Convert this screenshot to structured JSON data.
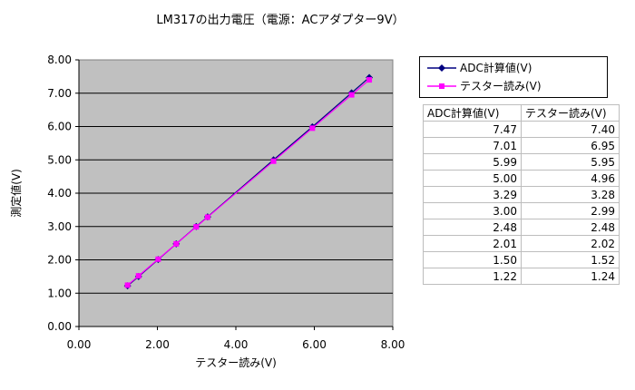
{
  "chart_data": {
    "type": "line",
    "title": "LM317の出力電圧（電源：ACアダプター9V）",
    "xlabel": "テスター読み(V)",
    "ylabel": "測定値(V)",
    "xlim": [
      0,
      8
    ],
    "ylim": [
      0,
      8
    ],
    "x_ticks": [
      "0.00",
      "2.00",
      "4.00",
      "6.00",
      "8.00"
    ],
    "y_ticks": [
      "0.00",
      "1.00",
      "2.00",
      "3.00",
      "4.00",
      "5.00",
      "6.00",
      "7.00",
      "8.00"
    ],
    "grid": "horizontal",
    "plot_background": "#c0c0c0",
    "legend_position": "right-top",
    "series": [
      {
        "name": "ADC計算値(V)",
        "color": "#000080",
        "marker": "diamond",
        "points": [
          [
            7.4,
            7.47
          ],
          [
            6.95,
            7.01
          ],
          [
            5.95,
            5.99
          ],
          [
            4.96,
            5.0
          ],
          [
            3.28,
            3.29
          ],
          [
            2.99,
            3.0
          ],
          [
            2.48,
            2.48
          ],
          [
            2.02,
            2.01
          ],
          [
            1.52,
            1.5
          ],
          [
            1.24,
            1.22
          ]
        ]
      },
      {
        "name": "テスター読み(V)",
        "color": "#ff00ff",
        "marker": "square",
        "points": [
          [
            7.4,
            7.4
          ],
          [
            6.95,
            6.95
          ],
          [
            5.95,
            5.95
          ],
          [
            4.96,
            4.96
          ],
          [
            3.28,
            3.28
          ],
          [
            2.99,
            2.99
          ],
          [
            2.48,
            2.48
          ],
          [
            2.02,
            2.02
          ],
          [
            1.52,
            1.52
          ],
          [
            1.24,
            1.24
          ]
        ]
      }
    ]
  },
  "legend": {
    "items": [
      "ADC計算値(V)",
      "テスター読み(V)"
    ]
  },
  "table": {
    "headers": [
      "ADC計算値(V)",
      "テスター読み(V)"
    ],
    "rows": [
      [
        "7.47",
        "7.40"
      ],
      [
        "7.01",
        "6.95"
      ],
      [
        "5.99",
        "5.95"
      ],
      [
        "5.00",
        "4.96"
      ],
      [
        "3.29",
        "3.28"
      ],
      [
        "3.00",
        "2.99"
      ],
      [
        "2.48",
        "2.48"
      ],
      [
        "2.01",
        "2.02"
      ],
      [
        "1.50",
        "1.52"
      ],
      [
        "1.22",
        "1.24"
      ]
    ]
  }
}
